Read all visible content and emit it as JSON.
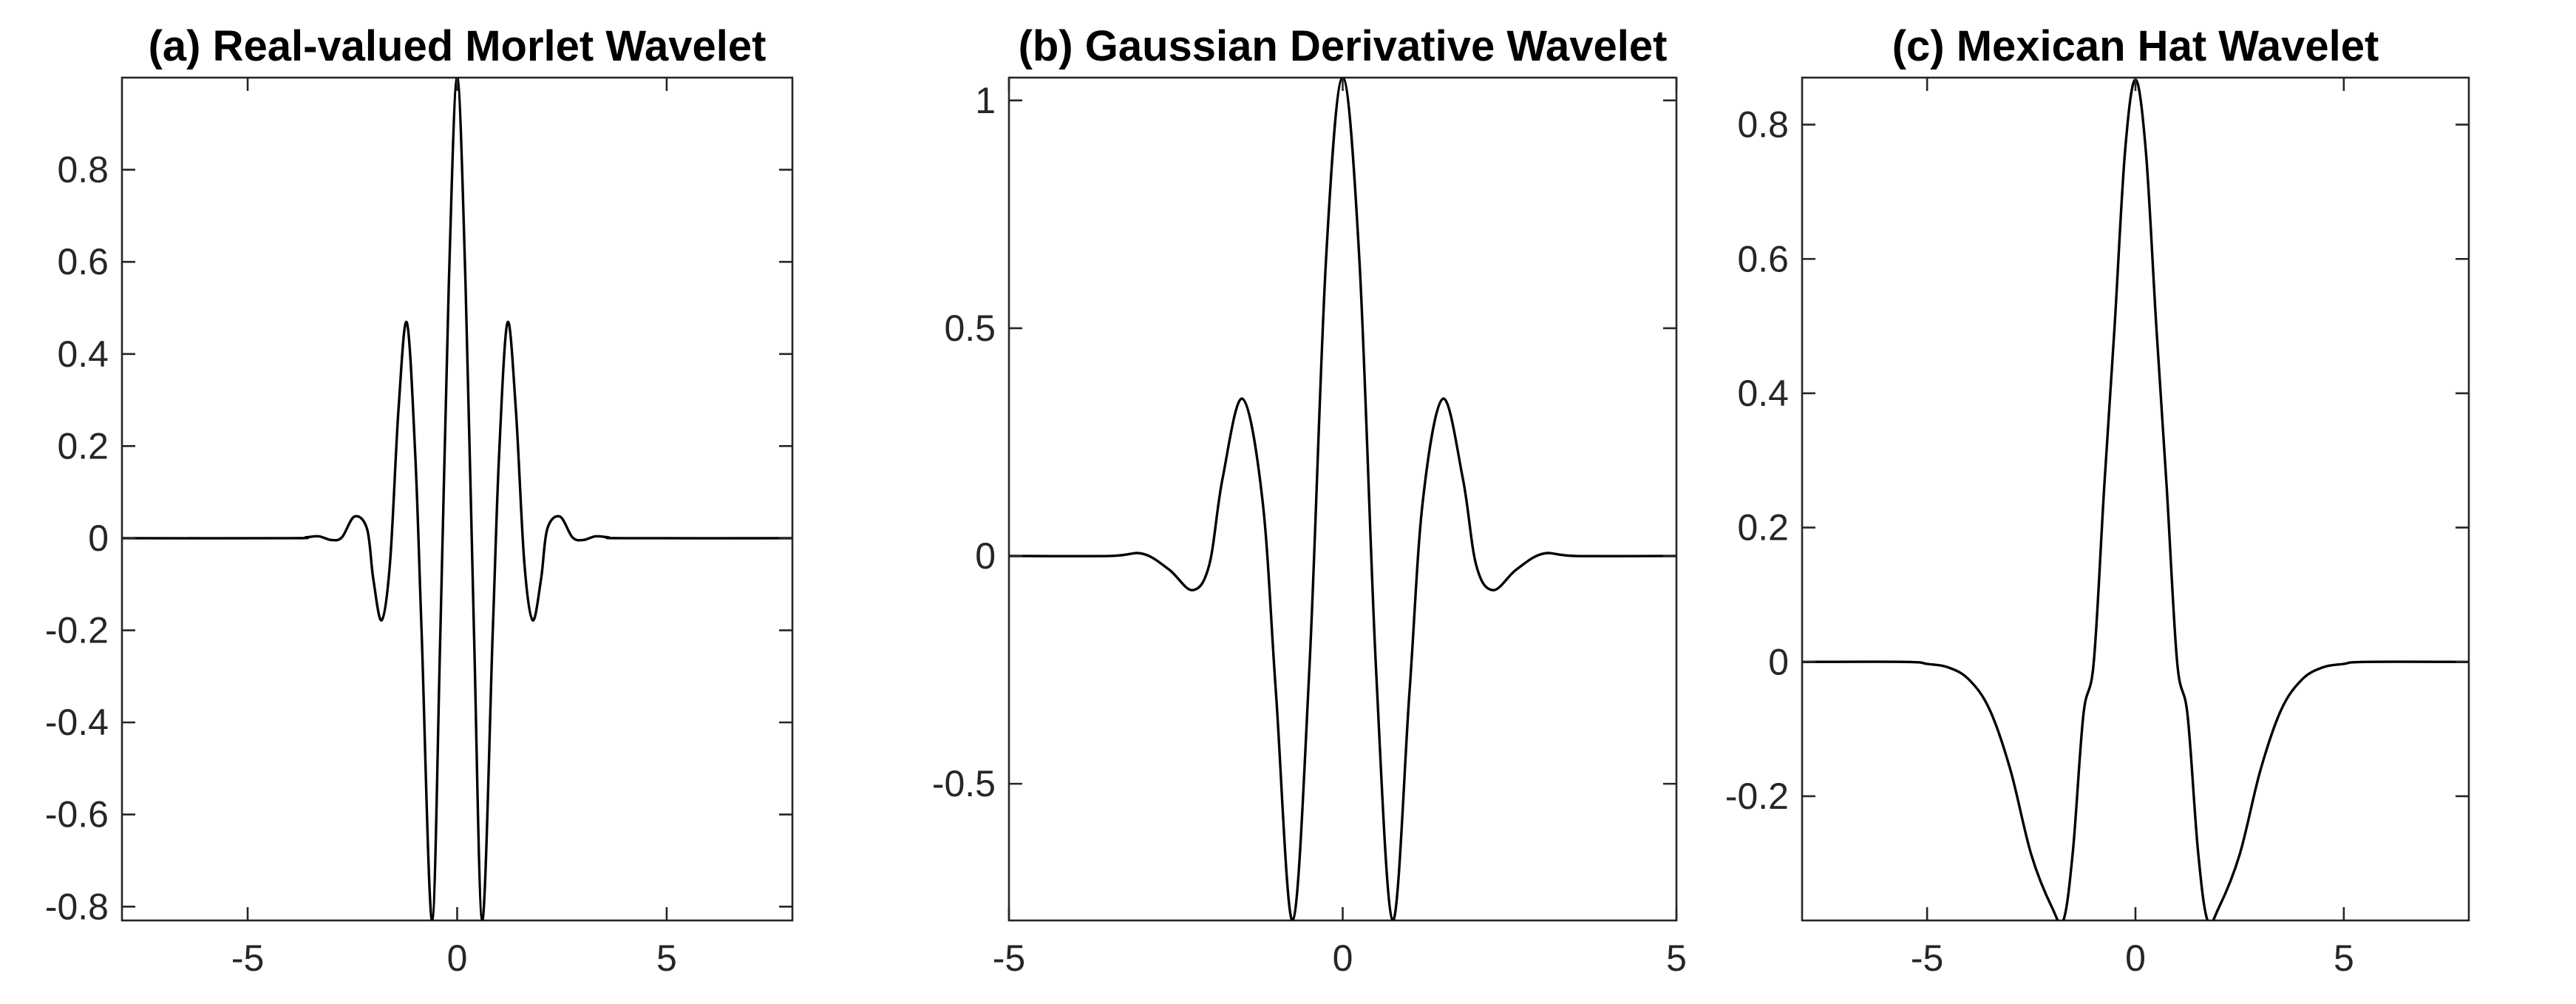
{
  "chart_data": [
    {
      "type": "line",
      "title": "(a) Real-valued Morlet Wavelet",
      "xlabel": "",
      "ylabel": "",
      "xlim": [
        -8,
        8
      ],
      "ylim": [
        -0.83,
        1.0
      ],
      "xticks": [
        -5,
        0,
        5
      ],
      "xtick_labels": [
        "-5",
        "0",
        "5"
      ],
      "yticks": [
        -0.8,
        -0.6,
        -0.4,
        -0.2,
        0,
        0.2,
        0.4,
        0.6,
        0.8
      ],
      "ytick_labels": [
        "-0.8",
        "-0.6",
        "-0.4",
        "-0.2",
        "0",
        "0.2",
        "0.4",
        "0.6",
        "0.8"
      ],
      "grid": false,
      "series": [
        {
          "x": [
            -8,
            -4,
            -3.6,
            -3.3,
            -3.0,
            -2.75,
            -2.45,
            -2.15,
            -2.0,
            -1.8,
            -1.6,
            -1.4,
            -1.2,
            -1.0,
            -0.85,
            -0.6,
            -0.4,
            -0.2,
            0,
            0.2,
            0.4,
            0.6,
            0.85,
            1.0,
            1.2,
            1.4,
            1.6,
            1.8,
            2.0,
            2.15,
            2.45,
            2.75,
            3.0,
            3.3,
            3.6,
            4,
            8
          ],
          "y": [
            0,
            0,
            0.002,
            0.004,
            -0.004,
            0.002,
            0.047,
            0.02,
            -0.09,
            -0.178,
            -0.05,
            0.28,
            0.468,
            0.18,
            -0.2,
            -0.83,
            -0.2,
            0.55,
            1.0,
            0.55,
            -0.2,
            -0.83,
            -0.2,
            0.18,
            0.468,
            0.28,
            -0.05,
            -0.178,
            -0.09,
            0.02,
            0.047,
            0.002,
            -0.004,
            0.004,
            0.002,
            0,
            0
          ]
        }
      ]
    },
    {
      "type": "line",
      "title": "(b) Gaussian Derivative Wavelet",
      "xlabel": "",
      "ylabel": "",
      "xlim": [
        -5,
        5
      ],
      "ylim": [
        -0.8,
        1.05
      ],
      "xticks": [
        -5,
        0,
        5
      ],
      "xtick_labels": [
        "-5",
        "0",
        "5"
      ],
      "yticks": [
        -0.5,
        0,
        0.5,
        1
      ],
      "ytick_labels": [
        "-0.5",
        "0",
        "0.5",
        "1"
      ],
      "grid": false,
      "series": [
        {
          "x": [
            -5,
            -3.5,
            -3.0,
            -2.6,
            -2.25,
            -2.0,
            -1.8,
            -1.5,
            -1.2,
            -1.0,
            -0.75,
            -0.5,
            -0.25,
            0,
            0.25,
            0.5,
            0.75,
            1.0,
            1.2,
            1.5,
            1.8,
            2.0,
            2.25,
            2.6,
            3.0,
            3.5,
            5
          ],
          "y": [
            0,
            0,
            0.005,
            -0.03,
            -0.075,
            -0.02,
            0.17,
            0.345,
            0.12,
            -0.3,
            -0.8,
            -0.25,
            0.65,
            1.05,
            0.65,
            -0.25,
            -0.8,
            -0.3,
            0.12,
            0.345,
            0.17,
            -0.02,
            -0.075,
            -0.03,
            0.005,
            0,
            0
          ]
        }
      ]
    },
    {
      "type": "line",
      "title": "(c) Mexican Hat Wavelet",
      "xlabel": "",
      "ylabel": "",
      "xlim": [
        -8,
        8
      ],
      "ylim": [
        -0.385,
        0.87
      ],
      "xticks": [
        -5,
        0,
        5
      ],
      "xtick_labels": [
        "-5",
        "0",
        "5"
      ],
      "yticks": [
        -0.2,
        0,
        0.2,
        0.4,
        0.6,
        0.8
      ],
      "ytick_labels": [
        "-0.2",
        "0",
        "0.2",
        "0.4",
        "0.6",
        "0.8"
      ],
      "grid": false,
      "series": [
        {
          "x": [
            -8,
            -5.5,
            -5.0,
            -4.5,
            -4.0,
            -3.5,
            -3.0,
            -2.5,
            -2.0,
            -1.73,
            -1.5,
            -1.25,
            -1.0,
            -0.75,
            -0.5,
            -0.25,
            0,
            0.25,
            0.5,
            0.75,
            1.0,
            1.25,
            1.5,
            1.73,
            2.0,
            2.5,
            3.0,
            3.5,
            4.0,
            4.5,
            5.0,
            5.5,
            8
          ],
          "y": [
            0,
            0,
            -0.003,
            -0.008,
            -0.026,
            -0.071,
            -0.161,
            -0.287,
            -0.366,
            -0.385,
            -0.281,
            -0.079,
            0.0,
            0.26,
            0.5,
            0.76,
            0.867,
            0.76,
            0.5,
            0.26,
            0.0,
            -0.079,
            -0.281,
            -0.385,
            -0.366,
            -0.287,
            -0.161,
            -0.071,
            -0.026,
            -0.008,
            -0.003,
            0,
            0
          ]
        }
      ]
    }
  ]
}
